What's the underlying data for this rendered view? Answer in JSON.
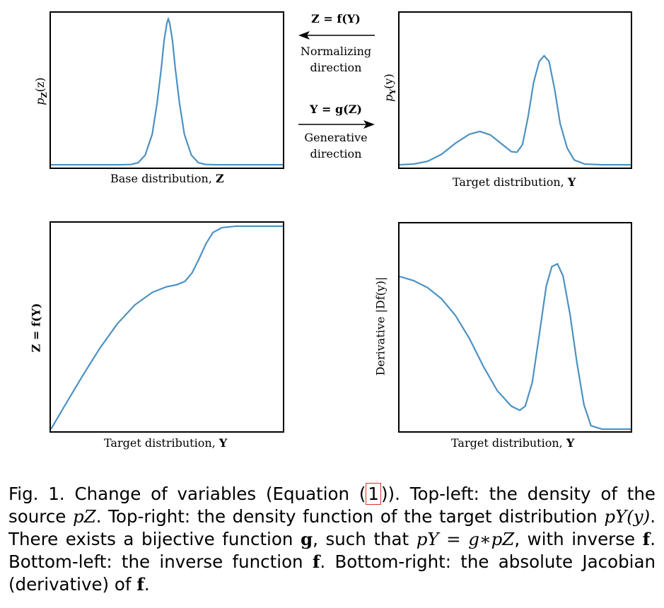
{
  "panels": {
    "top_left": {
      "ylabel": "p",
      "ylabel_sub": "Z",
      "ylabel_arg": "(z)",
      "xlabel": "Base distribution, ",
      "xlabel_var": "Z"
    },
    "top_right": {
      "ylabel": "p",
      "ylabel_sub": "Y",
      "ylabel_arg": "(y)",
      "xlabel": "Target distribution, ",
      "xlabel_var": "Y"
    },
    "bottom_left": {
      "ylabel": "Z = f(Y)",
      "xlabel": "Target distribution, ",
      "xlabel_var": "Y"
    },
    "bottom_right": {
      "ylabel": "Derivative |Df(y)|",
      "xlabel": "Target distribution, ",
      "xlabel_var": "Y"
    }
  },
  "arrows": {
    "normalizing": {
      "formula": "Z = f(Y)",
      "line1": "Normalizing",
      "line2": "direction"
    },
    "generative": {
      "formula": "Y = g(Z)",
      "line1": "Generative",
      "line2": "direction"
    }
  },
  "caption": {
    "p1": "Fig. 1. Change of variables (Equation (",
    "ref": "1",
    "p2": ")). Top-left: the density of the source ",
    "pz": "pZ",
    "p3": ". Top-right: the density function of the target distribution ",
    "py": "pY(y)",
    "p4": ". There exists a bijective function ",
    "g": "g",
    "p5": ", such that ",
    "eq": "pY = g∗pZ",
    "p6": ", with inverse ",
    "f1": "f",
    "p7": ". Bottom-left: the inverse function ",
    "f2": "f",
    "p8": ". Bottom-right: the absolute Jacobian (derivative) of ",
    "f3": "f",
    "p9": "."
  },
  "colors": {
    "curve": "#4a90c2",
    "ref_box": "#e0302a"
  }
}
